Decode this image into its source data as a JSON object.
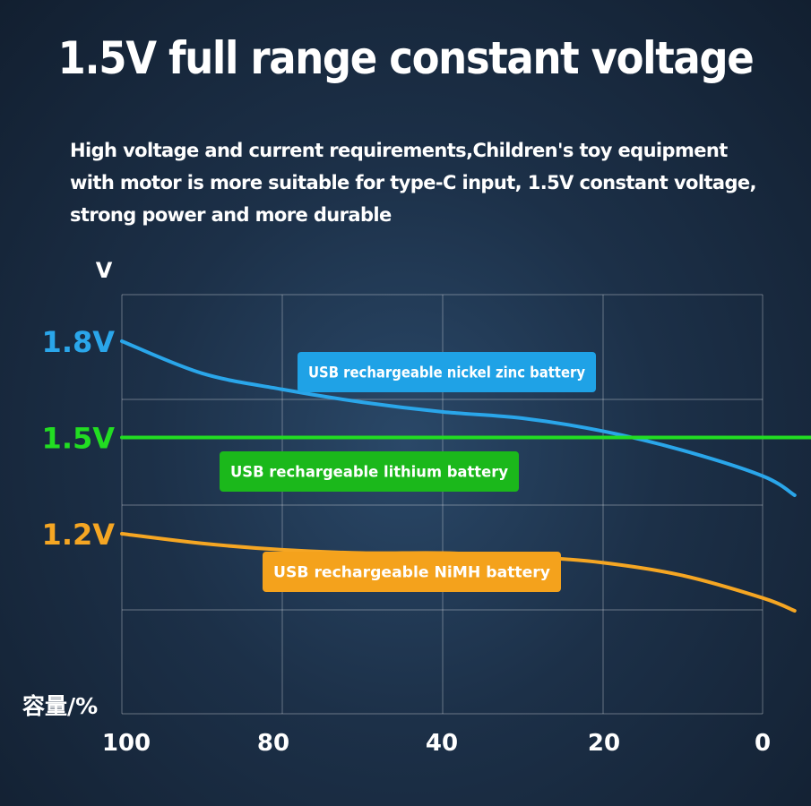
{
  "title": "1.5V full range constant voltage",
  "subtitle_lines": [
    "High voltage and current requirements,Children's toy equipment",
    "with motor is more suitable for type-C input, 1.5V constant voltage,",
    "strong power and more durable"
  ],
  "chart_data": {
    "type": "line",
    "ylabel": "V",
    "xlabel": "容量/%",
    "x_ticks": [
      "100",
      "80",
      "40",
      "20",
      "0"
    ],
    "y_ticks": [
      {
        "label": "1.8V",
        "value": 1.8,
        "color": "#2aa6ea"
      },
      {
        "label": "1.5V",
        "value": 1.5,
        "color": "#22dd22"
      },
      {
        "label": "1.2V",
        "value": 1.2,
        "color": "#f5a623"
      }
    ],
    "grid": true,
    "series": [
      {
        "name": "USB rechargeable nickel zinc battery",
        "color": "#2aa6ea",
        "label_color": "#1fa2e6",
        "points": [
          [
            0,
            1.8
          ],
          [
            0.5,
            1.7
          ],
          [
            1,
            1.65
          ],
          [
            1.5,
            1.61
          ],
          [
            2,
            1.58
          ],
          [
            2.5,
            1.56
          ],
          [
            3,
            1.52
          ],
          [
            3.5,
            1.46
          ],
          [
            4,
            1.38
          ],
          [
            4.2,
            1.32
          ]
        ]
      },
      {
        "name": "USB rechargeable lithium battery",
        "color": "#22dd22",
        "label_color": "#1bb81b",
        "points": [
          [
            0,
            1.5
          ],
          [
            4,
            1.5
          ],
          [
            4.2,
            1.5
          ]
        ]
      },
      {
        "name": "USB rechargeable NiMH battery",
        "color": "#f5a623",
        "label_color": "#f4a21c",
        "points": [
          [
            0,
            1.2
          ],
          [
            0.5,
            1.17
          ],
          [
            1,
            1.15
          ],
          [
            1.5,
            1.14
          ],
          [
            2,
            1.14
          ],
          [
            2.5,
            1.13
          ],
          [
            3,
            1.11
          ],
          [
            3.5,
            1.07
          ],
          [
            4,
            1.0
          ],
          [
            4.2,
            0.96
          ]
        ]
      }
    ]
  }
}
